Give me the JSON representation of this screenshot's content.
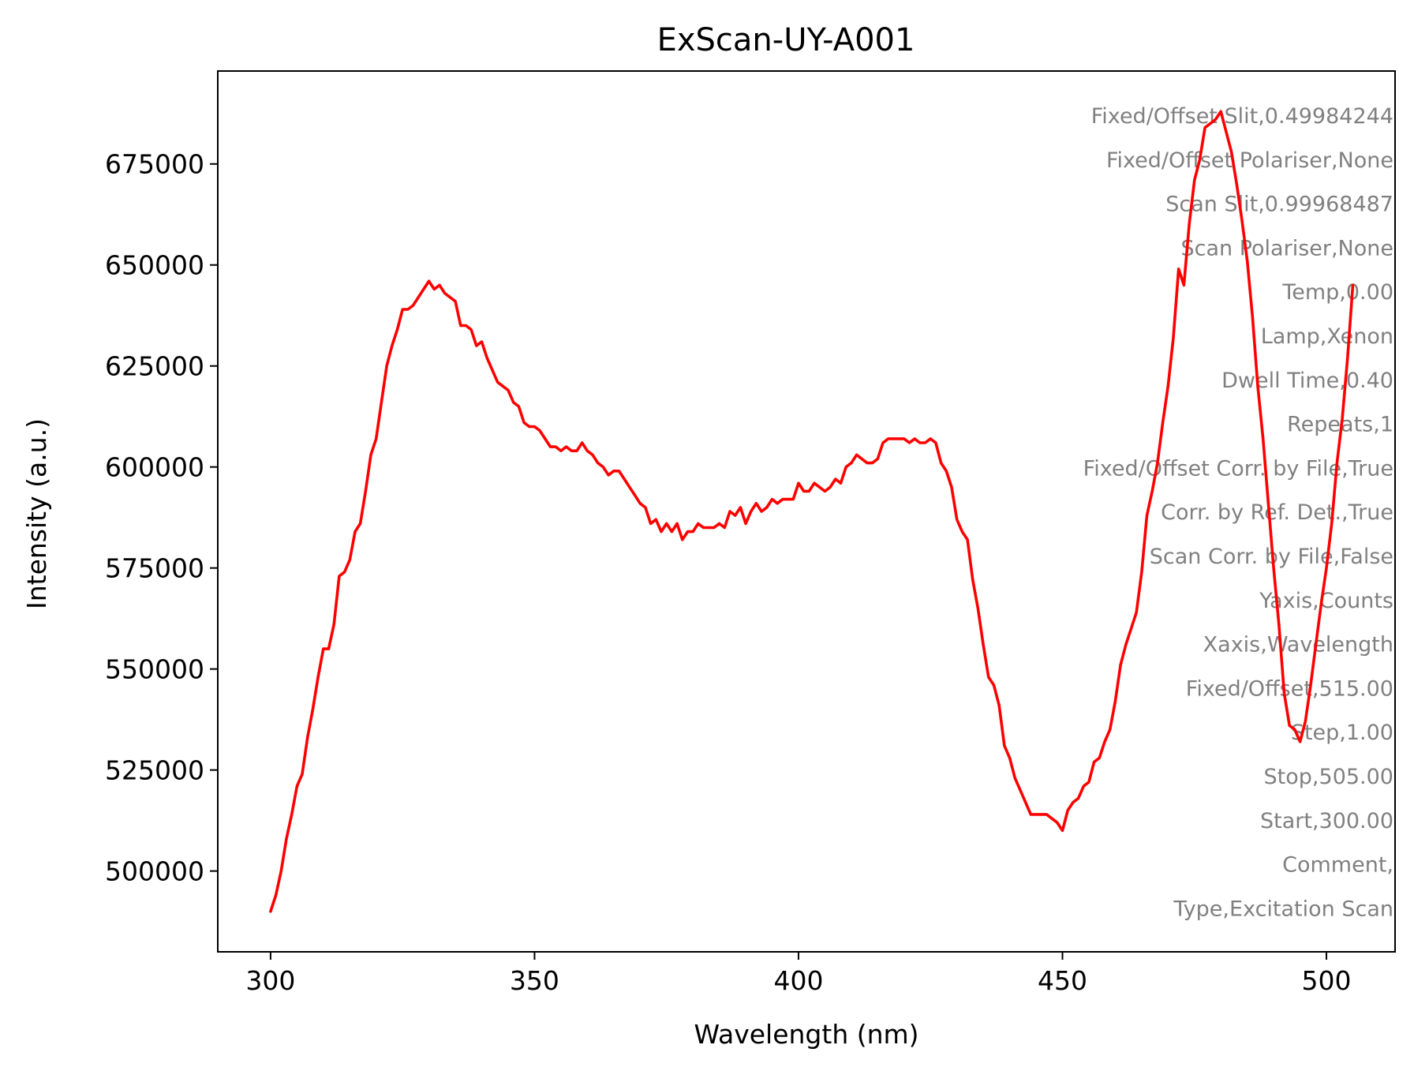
{
  "chart_data": {
    "type": "line",
    "title": "ExScan-UY-A001",
    "xlabel": "Wavelength (nm)",
    "ylabel": "Intensity (a.u.)",
    "xlim": [
      290,
      513
    ],
    "ylim": [
      480000,
      698000
    ],
    "xticks": [
      300,
      350,
      400,
      450,
      500
    ],
    "yticks": [
      500000,
      525000,
      550000,
      575000,
      600000,
      625000,
      650000,
      675000
    ],
    "grid": false,
    "series": [
      {
        "color": "#ff0000",
        "x": [
          300,
          301,
          302,
          303,
          304,
          305,
          306,
          307,
          308,
          309,
          310,
          311,
          312,
          313,
          314,
          315,
          316,
          317,
          318,
          319,
          320,
          321,
          322,
          323,
          324,
          325,
          326,
          327,
          328,
          329,
          330,
          331,
          332,
          333,
          334,
          335,
          336,
          337,
          338,
          339,
          340,
          341,
          342,
          343,
          344,
          345,
          346,
          347,
          348,
          349,
          350,
          351,
          352,
          353,
          354,
          355,
          356,
          357,
          358,
          359,
          360,
          361,
          362,
          363,
          364,
          365,
          366,
          367,
          368,
          369,
          370,
          371,
          372,
          373,
          374,
          375,
          376,
          377,
          378,
          379,
          380,
          381,
          382,
          383,
          384,
          385,
          386,
          387,
          388,
          389,
          390,
          391,
          392,
          393,
          394,
          395,
          396,
          397,
          398,
          399,
          400,
          401,
          402,
          403,
          404,
          405,
          406,
          407,
          408,
          409,
          410,
          411,
          412,
          413,
          414,
          415,
          416,
          417,
          418,
          419,
          420,
          421,
          422,
          423,
          424,
          425,
          426,
          427,
          428,
          429,
          430,
          431,
          432,
          433,
          434,
          435,
          436,
          437,
          438,
          439,
          440,
          441,
          442,
          443,
          444,
          445,
          446,
          447,
          448,
          449,
          450,
          451,
          452,
          453,
          454,
          455,
          456,
          457,
          458,
          459,
          460,
          461,
          462,
          463,
          464,
          465,
          466,
          467,
          468,
          469,
          470,
          471,
          472,
          473,
          474,
          475,
          476,
          477,
          478,
          479,
          480,
          481,
          482,
          483,
          484,
          485,
          486,
          487,
          488,
          489,
          490,
          491,
          492,
          493,
          494,
          495,
          496,
          497,
          498,
          499,
          500,
          501,
          502,
          503,
          504,
          505
        ],
        "y": [
          490000,
          494000,
          500000,
          508000,
          514000,
          521000,
          524000,
          533000,
          540000,
          548000,
          555000,
          555000,
          561000,
          573000,
          574000,
          577000,
          584000,
          586000,
          594000,
          603000,
          607000,
          616000,
          625000,
          630000,
          634000,
          639000,
          639000,
          640000,
          642000,
          644000,
          646000,
          644000,
          645000,
          643000,
          642000,
          641000,
          635000,
          635000,
          634000,
          630000,
          631000,
          627000,
          624000,
          621000,
          620000,
          619000,
          616000,
          615000,
          611000,
          610000,
          610000,
          609000,
          607000,
          605000,
          605000,
          604000,
          605000,
          604000,
          604000,
          606000,
          604000,
          603000,
          601000,
          600000,
          598000,
          599000,
          599000,
          597000,
          595000,
          593000,
          591000,
          590000,
          586000,
          587000,
          584000,
          586000,
          584000,
          586000,
          582000,
          584000,
          584000,
          586000,
          585000,
          585000,
          585000,
          586000,
          585000,
          589000,
          588000,
          590000,
          586000,
          589000,
          591000,
          589000,
          590000,
          592000,
          591000,
          592000,
          592000,
          592000,
          596000,
          594000,
          594000,
          596000,
          595000,
          594000,
          595000,
          597000,
          596000,
          600000,
          601000,
          603000,
          602000,
          601000,
          601000,
          602000,
          606000,
          607000,
          607000,
          607000,
          607000,
          606000,
          607000,
          606000,
          606000,
          607000,
          606000,
          601000,
          599000,
          595000,
          587000,
          584000,
          582000,
          572000,
          565000,
          556000,
          548000,
          546000,
          541000,
          531000,
          528000,
          523000,
          520000,
          517000,
          514000,
          514000,
          514000,
          514000,
          513000,
          512000,
          510000,
          515000,
          517000,
          518000,
          521000,
          522000,
          527000,
          528000,
          532000,
          535000,
          542000,
          551000,
          556000,
          560000,
          564000,
          574000,
          588000,
          594000,
          601000,
          611000,
          620000,
          632000,
          649000,
          645000,
          660000,
          671000,
          676000,
          684000,
          685000,
          686000,
          688000,
          683000,
          678000,
          670000,
          661000,
          651000,
          637000,
          620000,
          607000,
          591000,
          575000,
          561000,
          544000,
          536000,
          535000,
          532000,
          537000,
          546000,
          556000,
          566000,
          575000,
          586000,
          601000,
          612000,
          627000,
          645000
        ]
      }
    ],
    "annotations": [
      "Fixed/Offset Slit,0.49984244",
      "Fixed/Offset Polariser,None",
      "Scan Slit,0.99968487",
      "Scan Polariser,None",
      "Temp,0.00",
      "Lamp,Xenon",
      "Dwell Time,0.40",
      "Repeats,1",
      "Fixed/Offset Corr. by File,True",
      "Corr. by Ref. Det.,True",
      "Scan Corr. by File,False",
      "Yaxis,Counts",
      "Xaxis,Wavelength",
      "Fixed/Offset,515.00",
      "Step,1.00",
      "Stop,505.00",
      "Start,300.00",
      "Comment,",
      "Type,Excitation Scan"
    ]
  }
}
